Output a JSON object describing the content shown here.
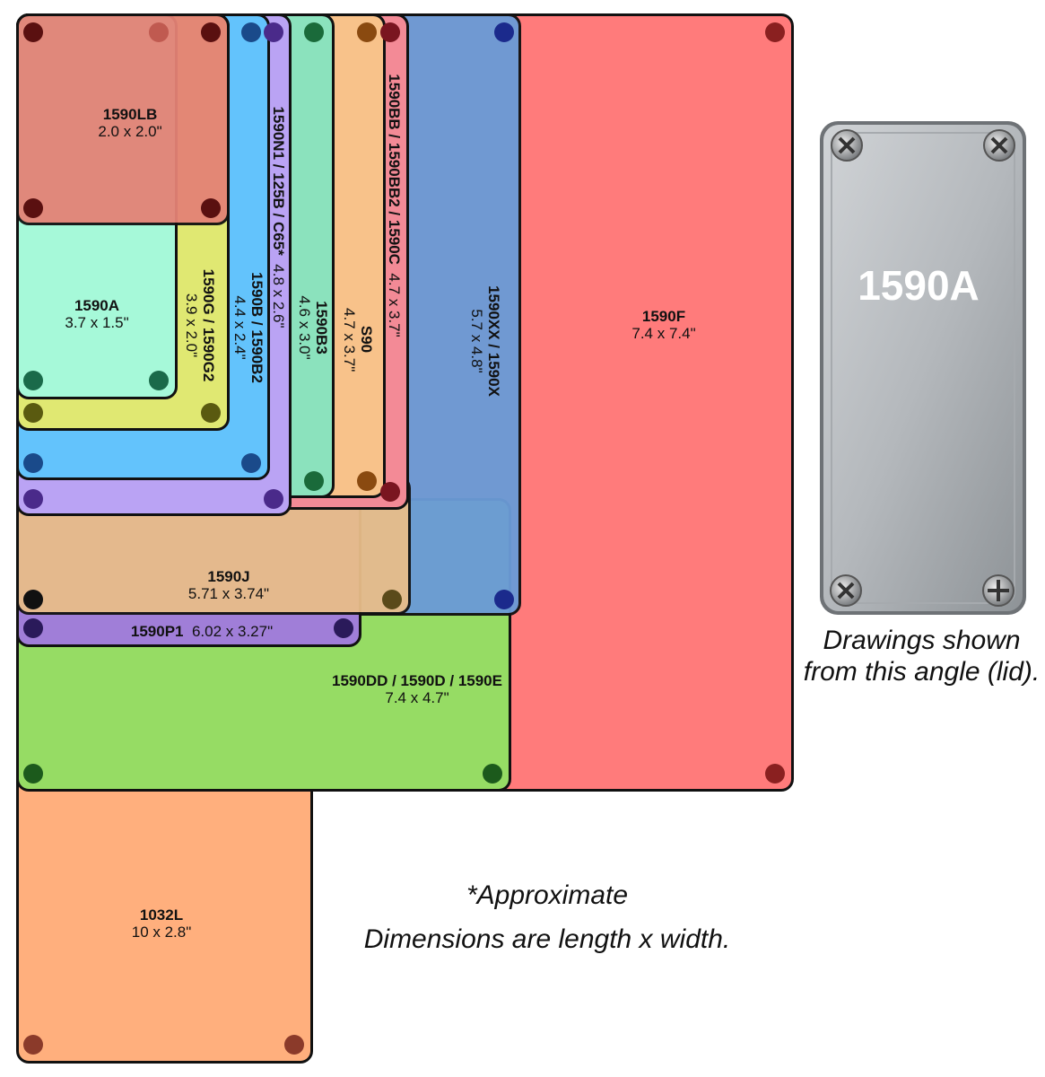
{
  "enclosures": [
    {
      "id": "1590F",
      "name": "1590F",
      "dims": "7.4 x 7.4\"",
      "color": "#ff7b7b"
    },
    {
      "id": "1590XX",
      "name": "1590XX / 1590X",
      "dims": "5.7 x 4.8\"",
      "color": "#6b9bd6"
    },
    {
      "id": "1590DD",
      "name": "1590DD / 1590D / 1590E",
      "dims": "7.4 x 4.7\"",
      "color": "#96dc64"
    },
    {
      "id": "1032L",
      "name": "1032L",
      "dims": "10 x 2.8\"",
      "color": "#ffaf7d"
    },
    {
      "id": "1590J",
      "name": "1590J",
      "dims": "5.71 x 3.74\"",
      "color": "#e8bd8a"
    },
    {
      "id": "1590P1",
      "name": "1590P1",
      "dims": "6.02 x 3.27\"",
      "color": "#a07ed8"
    },
    {
      "id": "1590BB",
      "name": "1590BB / 1590BB2 / 1590C",
      "dims": "4.7 x 3.7\"",
      "color": "#f38a96"
    },
    {
      "id": "S90",
      "name": "S90",
      "dims": "4.7 x 3.7\"",
      "color": "#f8c28a"
    },
    {
      "id": "1590B3",
      "name": "1590B3",
      "dims": "4.6 x 3.0\"",
      "color": "#8be2bd"
    },
    {
      "id": "1590N1",
      "name": "1590N1 / 125B / C65*",
      "dims": "4.8 x 2.6\"",
      "color": "#baa3f4"
    },
    {
      "id": "1590B",
      "name": "1590B / 1590B2",
      "dims": "4.4 x 2.4\"",
      "color": "#63c3fc"
    },
    {
      "id": "1590G",
      "name": "1590G / 1590G2",
      "dims": "3.9 x 2.0\"",
      "color": "#e0e872"
    },
    {
      "id": "1590A",
      "name": "1590A",
      "dims": "3.7 x 1.5\"",
      "color": "#a6f9d9"
    },
    {
      "id": "1590LB",
      "name": "1590LB",
      "dims": "2.0 x 2.0\"",
      "color": "#e48276"
    }
  ],
  "photo": {
    "label": "1590A",
    "caption": "Drawings shown from this angle (lid)."
  },
  "notes": {
    "approximate": "*Approximate",
    "dimensions": "Dimensions are length x width."
  }
}
